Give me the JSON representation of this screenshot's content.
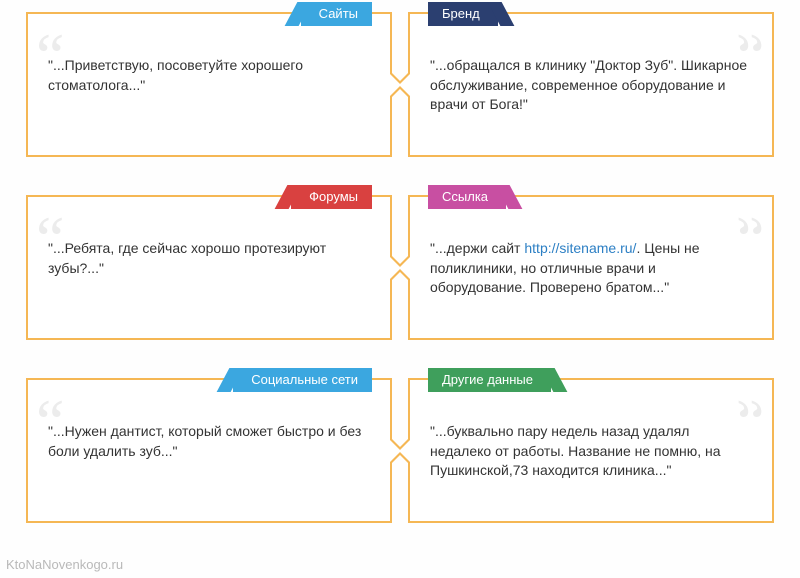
{
  "grid": {
    "border_color": "#f5b754",
    "quote_mark_color": "#ececec",
    "rows": [
      {
        "left": {
          "tag": {
            "label": "Сайты",
            "bg": "#3ba7e0"
          },
          "text": "\"...Приветствую, посоветуйте хорошего стоматолога...\""
        },
        "right": {
          "tag": {
            "label": "Бренд",
            "bg": "#2b3f70"
          },
          "text": "\"...обращался в клинику \"Доктор Зуб\". Шикарное обслуживание, современное оборудование и врачи от Бога!\""
        }
      },
      {
        "left": {
          "tag": {
            "label": "Форумы",
            "bg": "#d94140"
          },
          "text": "\"...Ребята, где сейчас хорошо протезируют зубы?...\""
        },
        "right": {
          "tag": {
            "label": "Ссылка",
            "bg": "#c84fa2"
          },
          "text_prefix": "\"...держи сайт ",
          "link_text": "http://sitename.ru/",
          "text_suffix": ". Цены не поликлиники, но отличные врачи и оборудование. Проверено братом...\""
        }
      },
      {
        "left": {
          "tag": {
            "label": "Социальные сети",
            "bg": "#3ba7e0"
          },
          "text": "\"...Нужен дантист, который сможет быстро и без боли удалить зуб...\""
        },
        "right": {
          "tag": {
            "label": "Другие данные",
            "bg": "#3f9f5c"
          },
          "text": "\"...буквально пару недель назад удалял недалеко от работы. Название не помню, на Пушкинской,73 находится клиника...\""
        }
      }
    ]
  },
  "watermark": "KtoNaNovenkogo.ru"
}
